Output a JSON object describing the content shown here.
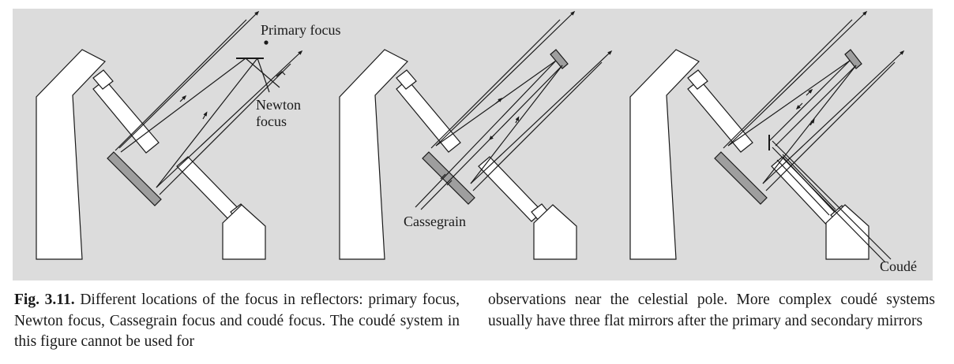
{
  "figure": {
    "background": "#dcdcdc",
    "line_color": "#1a1a1a",
    "mirror_fill": "#9e9e9e",
    "labels": {
      "primary_focus": "Primary focus",
      "newton_line1": "Newton",
      "newton_line2": "focus",
      "cassegrain": "Cassegrain",
      "coude": "Coudé"
    }
  },
  "caption": {
    "label": "Fig. 3.11.",
    "left_text": " Different locations of the focus in reflectors: primary focus, Newton focus, Cassegrain focus and coudé focus. The coudé system in this figure cannot be used for",
    "right_text": "observations near the celestial pole. More complex coudé systems usually have three flat mirrors after the primary and secondary mirrors"
  }
}
